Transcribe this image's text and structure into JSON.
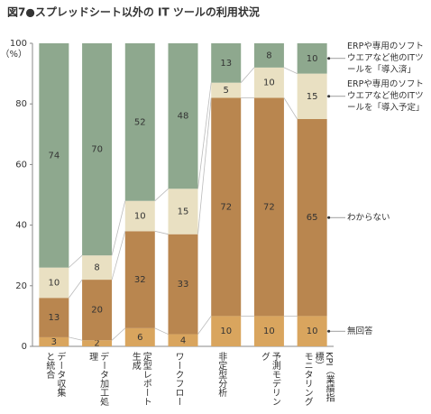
{
  "chart_data": {
    "type": "stacked_bar",
    "title": "図7●スプレッドシート以外の IT ツールの利用状況",
    "y_unit": "（%）",
    "categories": [
      "データ収集\nと統合",
      "データ加工処理",
      "定型レポート\n生成",
      "ワークフロー",
      "非定型分析",
      "予測モデリング",
      "KPI（業績指標）\nモニタリング"
    ],
    "series": [
      {
        "name": "無回答",
        "color": "#d9a55e",
        "values": [
          3,
          2,
          6,
          4,
          10,
          10,
          10
        ]
      },
      {
        "name": "わからない",
        "color": "#b9864f",
        "values": [
          13,
          20,
          32,
          33,
          72,
          72,
          65
        ]
      },
      {
        "name": "ERPや専用のソフトウエアなど他のITツールを「導入予定」",
        "color": "#e9e0c2",
        "values": [
          10,
          8,
          10,
          15,
          5,
          10,
          15
        ]
      },
      {
        "name": "ERPや専用のソフトウエアなど他のITツールを「導入済」",
        "color": "#8ea88e",
        "values": [
          74,
          70,
          52,
          48,
          13,
          8,
          10
        ]
      }
    ],
    "ylim": [
      0,
      100
    ],
    "yticks": [
      0,
      20,
      40,
      60,
      80,
      100
    ]
  }
}
